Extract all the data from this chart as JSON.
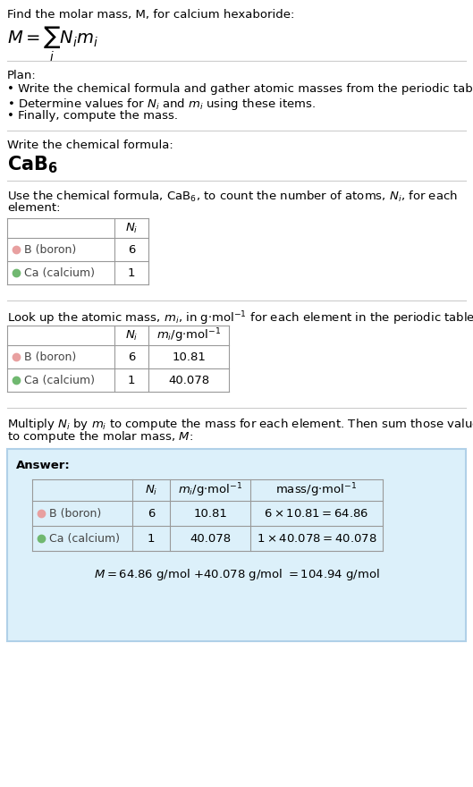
{
  "title_line": "Find the molar mass, M, for calcium hexaboride:",
  "formula_latex": "$M = \\displaystyle\\sum_i N_i m_i$",
  "plan_title": "Plan:",
  "plan_bullet1": "Write the chemical formula and gather atomic masses from the periodic table.",
  "plan_bullet2": "Determine values for $N_i$ and $m_i$ using these items.",
  "plan_bullet3": "Finally, compute the mass.",
  "step1_title": "Write the chemical formula:",
  "step1_formula_bold": "CaB",
  "step1_formula_sub": "6",
  "step2_title": "Use the chemical formula, CaB",
  "step2_title2": ", to count the number of atoms, ",
  "step2_title3": ", for each\nelement:",
  "step2_col": "$N_i$",
  "step3_title": "Look up the atomic mass, ",
  "step3_title2": ", in g·mol",
  "step3_title3": " for each element in the periodic table:",
  "step3_col1": "$N_i$",
  "step3_col2": "$m_i$/g·mol$^{-1}$",
  "step4_title1": "Multiply ",
  "step4_title2": " by ",
  "step4_title3": " to compute the mass for each element. Then sum those values\nto compute the molar mass, ",
  "step4_title4": ":",
  "answer_label": "Answer:",
  "ans_col1": "$N_i$",
  "ans_col2": "$m_i$/g·mol$^{-1}$",
  "ans_col3": "mass/g·mol$^{-1}$",
  "boron_color": "#E8A0A0",
  "calcium_color": "#70B870",
  "bg_color": "#FFFFFF",
  "answer_box_color": "#DCF0FA",
  "answer_box_border": "#B0D0E8",
  "table_border_color": "#999999",
  "text_color": "#000000",
  "gray_text": "#444444"
}
